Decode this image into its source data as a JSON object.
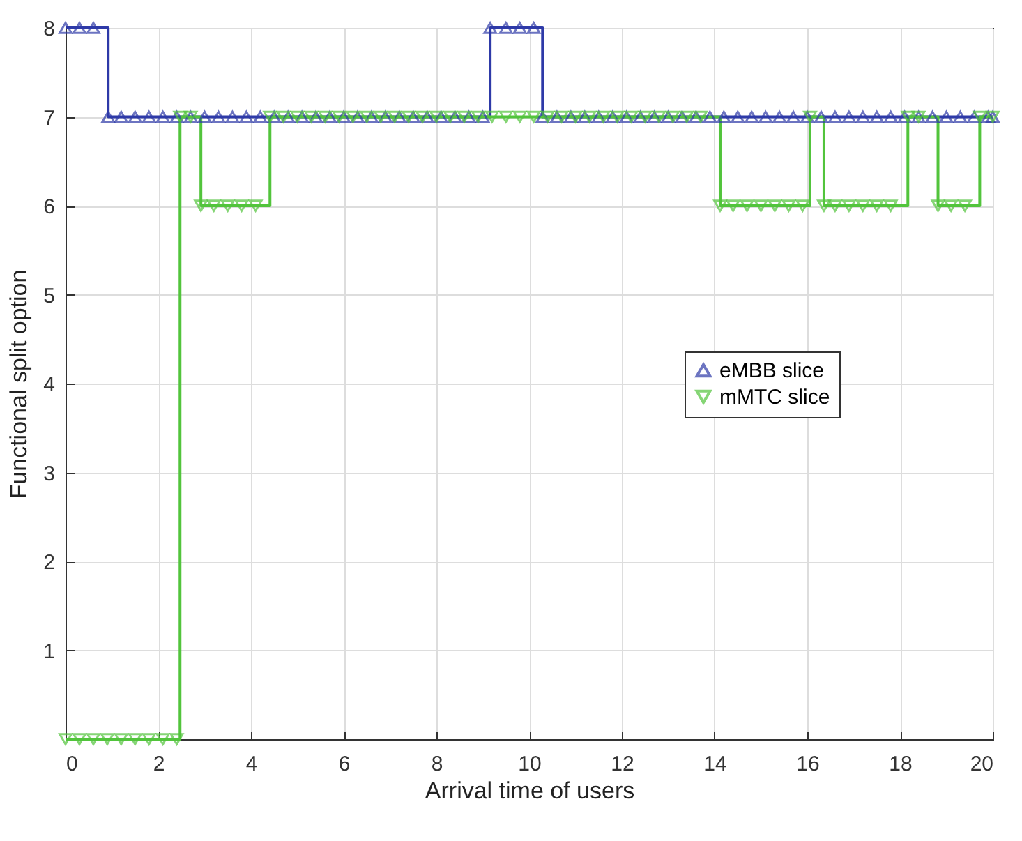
{
  "chart_data": {
    "type": "step",
    "xlabel": "Arrival time of users",
    "ylabel": "Functional split option",
    "xlim": [
      0,
      20
    ],
    "ylim": [
      0,
      8
    ],
    "xticks": [
      0,
      2,
      4,
      6,
      8,
      10,
      12,
      14,
      16,
      18,
      20
    ],
    "yticks": [
      1,
      2,
      3,
      4,
      5,
      6,
      7,
      8
    ],
    "grid": true,
    "legend": "right",
    "marker": "triangle",
    "series": [
      {
        "name": "eMBB slice",
        "color": "#2e3aa8",
        "x": [
          0,
          0.3,
          0.6,
          0.92,
          1.2,
          1.5,
          1.8,
          2.1,
          2.4,
          2.7,
          3.0,
          3.3,
          3.6,
          3.9,
          4.2,
          4.5,
          4.8,
          5.1,
          5.4,
          5.7,
          6.0,
          6.3,
          6.6,
          6.9,
          7.2,
          7.5,
          7.8,
          8.1,
          8.4,
          8.7,
          9.0,
          9.16,
          9.5,
          9.8,
          10.1,
          10.29,
          10.6,
          10.9,
          11.2,
          11.5,
          11.8,
          12.1,
          12.4,
          12.7,
          13.0,
          13.3,
          13.6,
          13.9,
          14.2,
          14.5,
          14.8,
          15.1,
          15.4,
          15.7,
          16.0,
          16.3,
          16.6,
          16.9,
          17.2,
          17.5,
          17.8,
          18.1,
          18.4,
          18.7,
          19.0,
          19.3,
          19.6,
          19.9,
          20
        ],
        "values": [
          8,
          8,
          8,
          7,
          7,
          7,
          7,
          7,
          7,
          7,
          7,
          7,
          7,
          7,
          7,
          7,
          7,
          7,
          7,
          7,
          7,
          7,
          7,
          7,
          7,
          7,
          7,
          7,
          7,
          7,
          7,
          8,
          8,
          8,
          8,
          7,
          7,
          7,
          7,
          7,
          7,
          7,
          7,
          7,
          7,
          7,
          7,
          7,
          7,
          7,
          7,
          7,
          7,
          7,
          7,
          7,
          7,
          7,
          7,
          7,
          7,
          7,
          7,
          7,
          7,
          7,
          7,
          7,
          7
        ]
      },
      {
        "name": "mMTC slice",
        "color": "#52c43c",
        "x": [
          0,
          0.3,
          0.6,
          0.9,
          1.2,
          1.5,
          1.8,
          2.1,
          2.4,
          2.47,
          2.7,
          2.92,
          3.2,
          3.5,
          3.8,
          4.1,
          4.41,
          4.7,
          5.0,
          5.3,
          5.6,
          5.9,
          6.2,
          6.5,
          6.8,
          7.1,
          7.4,
          7.7,
          8.0,
          8.3,
          8.6,
          8.9,
          9.2,
          9.5,
          9.8,
          10.1,
          10.4,
          10.7,
          11.0,
          11.3,
          11.6,
          11.9,
          12.2,
          12.5,
          12.8,
          13.1,
          13.4,
          13.7,
          14.12,
          14.4,
          14.7,
          15.0,
          15.3,
          15.6,
          15.9,
          16.06,
          16.36,
          16.6,
          16.9,
          17.2,
          17.5,
          17.8,
          18.17,
          18.4,
          18.82,
          19.1,
          19.4,
          19.72,
          20
        ],
        "values": [
          0,
          0,
          0,
          0,
          0,
          0,
          0,
          0,
          0,
          7,
          7,
          6,
          6,
          6,
          6,
          6,
          7,
          7,
          7,
          7,
          7,
          7,
          7,
          7,
          7,
          7,
          7,
          7,
          7,
          7,
          7,
          7,
          7,
          7,
          7,
          7,
          7,
          7,
          7,
          7,
          7,
          7,
          7,
          7,
          7,
          7,
          7,
          7,
          6,
          6,
          6,
          6,
          6,
          6,
          6,
          7,
          6,
          6,
          6,
          6,
          6,
          6,
          7,
          7,
          6,
          6,
          6,
          7,
          7
        ]
      }
    ]
  }
}
